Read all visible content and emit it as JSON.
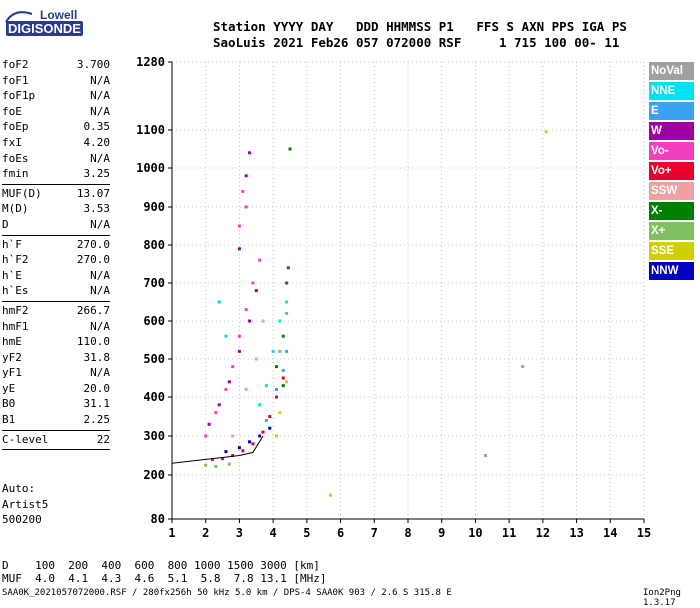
{
  "logo": {
    "line1": "Lowell",
    "line2": "DIGISONDE"
  },
  "header": {
    "line1": "Station YYYY DAY   DDD HHMMSS P1   FFS S AXN PPS IGA PS",
    "line2": "SaoLuis 2021 Feb26 057 072000 RSF     1 715 100 00- 11"
  },
  "params": {
    "group1": [
      {
        "name": "foF2",
        "value": "3.700"
      },
      {
        "name": "foF1",
        "value": "N/A"
      },
      {
        "name": "foF1p",
        "value": "N/A"
      },
      {
        "name": "foE",
        "value": "N/A"
      },
      {
        "name": "foEp",
        "value": "0.35"
      },
      {
        "name": "fxI",
        "value": "4.20"
      },
      {
        "name": "foEs",
        "value": "N/A"
      },
      {
        "name": "fmin",
        "value": "3.25"
      }
    ],
    "group2": [
      {
        "name": "MUF(D)",
        "value": "13.07"
      },
      {
        "name": "M(D)",
        "value": "3.53"
      },
      {
        "name": "D",
        "value": "N/A"
      }
    ],
    "group3": [
      {
        "name": "h`F",
        "value": "270.0"
      },
      {
        "name": "h`F2",
        "value": "270.0"
      },
      {
        "name": "h`E",
        "value": "N/A"
      },
      {
        "name": "h`Es",
        "value": "N/A"
      }
    ],
    "group4": [
      {
        "name": "hmF2",
        "value": "266.7"
      },
      {
        "name": "hmF1",
        "value": "N/A"
      },
      {
        "name": "hmE",
        "value": "110.0"
      },
      {
        "name": "yF2",
        "value": "31.8"
      },
      {
        "name": "yF1",
        "value": "N/A"
      },
      {
        "name": "yE",
        "value": "20.0"
      },
      {
        "name": "B0",
        "value": "31.1"
      },
      {
        "name": "B1",
        "value": "2.25"
      }
    ],
    "group5": [
      {
        "name": "C-level",
        "value": "22"
      }
    ]
  },
  "auto": {
    "line1": "Auto:",
    "line2": "Artist5",
    "line3": "500200"
  },
  "legend": [
    {
      "label": "NoVal",
      "color": "#a0a0a0"
    },
    {
      "label": "NNE",
      "color": "#00e0f0"
    },
    {
      "label": "E",
      "color": "#3aa0f0"
    },
    {
      "label": "W",
      "color": "#a000a0"
    },
    {
      "label": "Vo-",
      "color": "#f040c0"
    },
    {
      "label": "Vo+",
      "color": "#e80030"
    },
    {
      "label": "SSW",
      "color": "#f0a0a0"
    },
    {
      "label": "X-",
      "color": "#008000"
    },
    {
      "label": "X+",
      "color": "#80c060"
    },
    {
      "label": "SSE",
      "color": "#d0d000"
    },
    {
      "label": "NNW",
      "color": "#0000c0"
    }
  ],
  "muf_table": {
    "line1": "D    100  200  400  600  800 1000 1500 3000 [km]",
    "line2": "MUF  4.0  4.1  4.3  4.6  5.1  5.8  7.8 13.1 [MHz]"
  },
  "footer": {
    "left": "SAA0K_2021057072000.RSF / 280fx256h 50 kHz 5.0 km / DPS-4 SAA0K 903 / 2.6 S 315.8 E",
    "right": "Ion2Png 1.3.17"
  },
  "chart_data": {
    "type": "scatter",
    "title": "",
    "xlabel": "",
    "ylabel": "",
    "xlim": [
      1,
      15
    ],
    "x_ticks": [
      "1",
      "2",
      "3",
      "4",
      "5",
      "6",
      "7",
      "8",
      "9",
      "10",
      "11",
      "12",
      "13",
      "14",
      "15"
    ],
    "ylim": [
      80,
      1280
    ],
    "y_ticks": [
      "80",
      "200",
      "300",
      "400",
      "500",
      "600",
      "700",
      "800",
      "900",
      "1000",
      "1100",
      "1280"
    ],
    "grid": "dotted",
    "legend_position": "right",
    "series": [
      {
        "name": "Vo+",
        "color": "#e80030",
        "points": [
          [
            2.2,
            240
          ],
          [
            2.5,
            242
          ],
          [
            2.8,
            250
          ],
          [
            3.1,
            262
          ],
          [
            3.4,
            280
          ],
          [
            3.7,
            310
          ],
          [
            3.9,
            350
          ],
          [
            4.1,
            400
          ],
          [
            4.3,
            450
          ]
        ]
      },
      {
        "name": "Vo-",
        "color": "#f040c0",
        "points": [
          [
            2.0,
            300
          ],
          [
            2.3,
            360
          ],
          [
            2.6,
            420
          ],
          [
            2.8,
            480
          ],
          [
            3.0,
            560
          ],
          [
            3.2,
            630
          ],
          [
            3.4,
            700
          ],
          [
            3.6,
            760
          ],
          [
            3.0,
            850
          ],
          [
            3.2,
            900
          ],
          [
            3.1,
            940
          ]
        ]
      },
      {
        "name": "W",
        "color": "#a000a0",
        "points": [
          [
            2.1,
            330
          ],
          [
            2.4,
            380
          ],
          [
            2.7,
            440
          ],
          [
            3.0,
            520
          ],
          [
            3.3,
            600
          ],
          [
            3.5,
            680
          ],
          [
            3.0,
            790
          ],
          [
            3.2,
            980
          ],
          [
            3.3,
            1040
          ]
        ]
      },
      {
        "name": "NNE",
        "color": "#00e0f0",
        "points": [
          [
            3.6,
            380
          ],
          [
            3.8,
            430
          ],
          [
            4.0,
            520
          ],
          [
            4.2,
            600
          ],
          [
            4.4,
            650
          ],
          [
            2.4,
            650
          ],
          [
            2.6,
            560
          ]
        ]
      },
      {
        "name": "E",
        "color": "#3aa0f0",
        "points": [
          [
            3.8,
            340
          ],
          [
            4.1,
            420
          ],
          [
            4.3,
            470
          ],
          [
            4.4,
            520
          ]
        ]
      },
      {
        "name": "X-",
        "color": "#008000",
        "points": [
          [
            4.1,
            480
          ],
          [
            4.3,
            560
          ],
          [
            4.4,
            700
          ],
          [
            4.45,
            740
          ],
          [
            4.5,
            1050
          ],
          [
            4.3,
            430
          ]
        ]
      },
      {
        "name": "X+",
        "color": "#80c060",
        "points": [
          [
            2.0,
            225
          ],
          [
            2.3,
            222
          ],
          [
            2.7,
            228
          ],
          [
            4.2,
            520
          ],
          [
            4.4,
            620
          ]
        ]
      },
      {
        "name": "SSE",
        "color": "#d0d000",
        "points": [
          [
            4.2,
            360
          ],
          [
            4.4,
            440
          ],
          [
            5.7,
            145
          ],
          [
            12.1,
            1095
          ],
          [
            4.1,
            300
          ]
        ]
      },
      {
        "name": "NNW",
        "color": "#0000c0",
        "points": [
          [
            2.6,
            260
          ],
          [
            3.0,
            270
          ],
          [
            3.3,
            285
          ],
          [
            3.6,
            300
          ],
          [
            3.9,
            320
          ]
        ]
      },
      {
        "name": "SSW",
        "color": "#f0a0a0",
        "points": [
          [
            2.8,
            300
          ],
          [
            3.2,
            420
          ],
          [
            3.5,
            500
          ],
          [
            3.7,
            600
          ]
        ]
      },
      {
        "name": "NoVal",
        "color": "#a0a0a0",
        "points": [
          [
            10.3,
            250
          ],
          [
            11.4,
            480
          ]
        ]
      }
    ],
    "trace": [
      [
        1.0,
        230
      ],
      [
        2.0,
        240
      ],
      [
        2.5,
        245
      ],
      [
        3.0,
        250
      ],
      [
        3.4,
        258
      ],
      [
        3.7,
        300
      ]
    ]
  }
}
